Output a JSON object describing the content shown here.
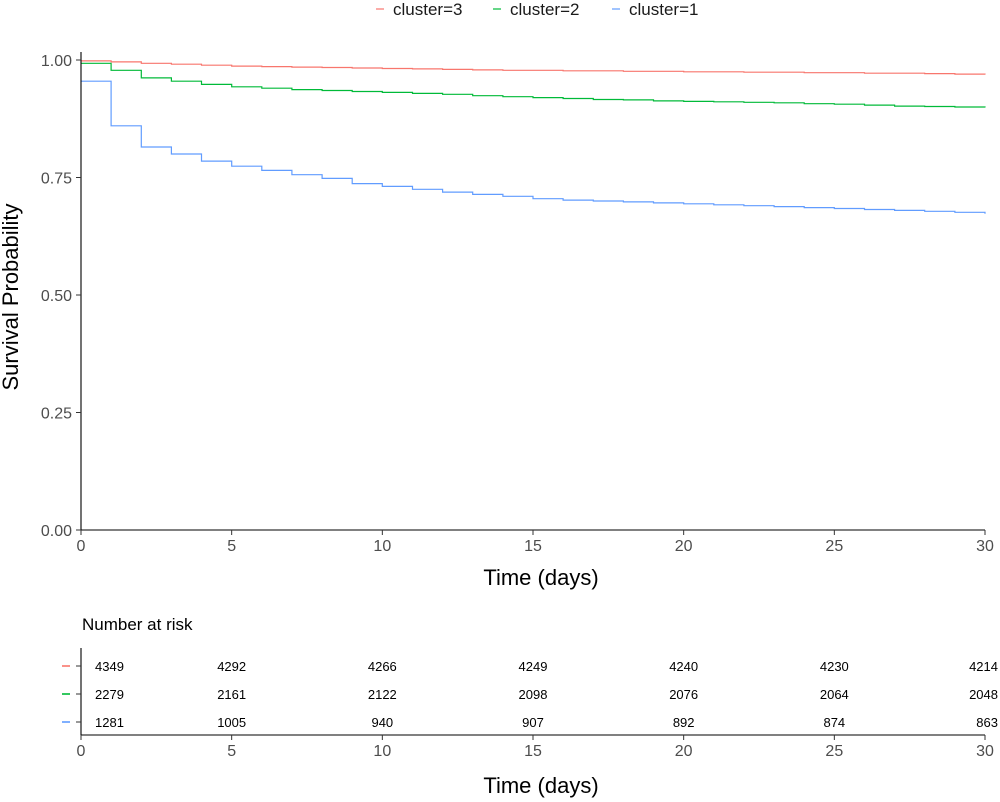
{
  "chart_data": [
    {
      "type": "line",
      "step": true,
      "xlabel": "Time (days)",
      "ylabel": "Survival Probability",
      "xlim": [
        0,
        30
      ],
      "ylim": [
        0,
        1
      ],
      "x_ticks": [
        "0",
        "5",
        "10",
        "15",
        "20",
        "25",
        "30"
      ],
      "y_ticks": [
        "0.00",
        "0.25",
        "0.50",
        "0.75",
        "1.00"
      ],
      "grid": false,
      "legend_position": "top",
      "legend": [
        "cluster=3",
        "cluster=2",
        "cluster=1"
      ],
      "series": [
        {
          "name": "cluster=3",
          "color": "#F8766D",
          "x": [
            0,
            1,
            2,
            3,
            4,
            5,
            6,
            7,
            8,
            9,
            10,
            11,
            12,
            13,
            14,
            15,
            16,
            17,
            18,
            19,
            20,
            21,
            22,
            23,
            24,
            25,
            26,
            27,
            28,
            29,
            30
          ],
          "y": [
            0.998,
            0.996,
            0.993,
            0.991,
            0.989,
            0.987,
            0.986,
            0.985,
            0.984,
            0.983,
            0.982,
            0.981,
            0.98,
            0.979,
            0.978,
            0.978,
            0.977,
            0.977,
            0.976,
            0.976,
            0.975,
            0.975,
            0.974,
            0.974,
            0.973,
            0.973,
            0.972,
            0.972,
            0.971,
            0.97,
            0.969
          ]
        },
        {
          "name": "cluster=2",
          "color": "#00BA38",
          "x": [
            0,
            1,
            2,
            3,
            4,
            5,
            6,
            7,
            8,
            9,
            10,
            11,
            12,
            13,
            14,
            15,
            16,
            17,
            18,
            19,
            20,
            21,
            22,
            23,
            24,
            25,
            26,
            27,
            28,
            29,
            30
          ],
          "y": [
            0.993,
            0.978,
            0.962,
            0.955,
            0.948,
            0.943,
            0.94,
            0.937,
            0.935,
            0.933,
            0.931,
            0.929,
            0.927,
            0.924,
            0.922,
            0.92,
            0.918,
            0.916,
            0.915,
            0.913,
            0.912,
            0.911,
            0.91,
            0.909,
            0.907,
            0.906,
            0.904,
            0.902,
            0.901,
            0.9,
            0.899
          ]
        },
        {
          "name": "cluster=1",
          "color": "#619CFF",
          "x": [
            0,
            1,
            2,
            3,
            4,
            5,
            6,
            7,
            8,
            9,
            10,
            11,
            12,
            13,
            14,
            15,
            16,
            17,
            18,
            19,
            20,
            21,
            22,
            23,
            24,
            25,
            26,
            27,
            28,
            29,
            30
          ],
          "y": [
            0.955,
            0.86,
            0.815,
            0.8,
            0.785,
            0.774,
            0.765,
            0.756,
            0.748,
            0.737,
            0.731,
            0.725,
            0.719,
            0.714,
            0.71,
            0.705,
            0.702,
            0.7,
            0.698,
            0.696,
            0.694,
            0.692,
            0.69,
            0.688,
            0.686,
            0.684,
            0.682,
            0.68,
            0.678,
            0.676,
            0.673
          ]
        }
      ]
    },
    {
      "type": "table",
      "title": "Number at risk",
      "xlabel": "Time (days)",
      "xlim": [
        0,
        30
      ],
      "x_ticks": [
        "0",
        "5",
        "10",
        "15",
        "20",
        "25",
        "30"
      ],
      "columns": [
        0,
        5,
        10,
        15,
        20,
        25,
        30
      ],
      "rows": [
        {
          "name": "cluster=3",
          "color": "#F8766D",
          "values": [
            "4349",
            "4292",
            "4266",
            "4249",
            "4240",
            "4230",
            "4214"
          ]
        },
        {
          "name": "cluster=2",
          "color": "#00BA38",
          "values": [
            "2279",
            "2161",
            "2122",
            "2098",
            "2076",
            "2064",
            "2048"
          ]
        },
        {
          "name": "cluster=1",
          "color": "#619CFF",
          "values": [
            "1281",
            "1005",
            "940",
            "907",
            "892",
            "874",
            "863"
          ]
        }
      ]
    }
  ]
}
